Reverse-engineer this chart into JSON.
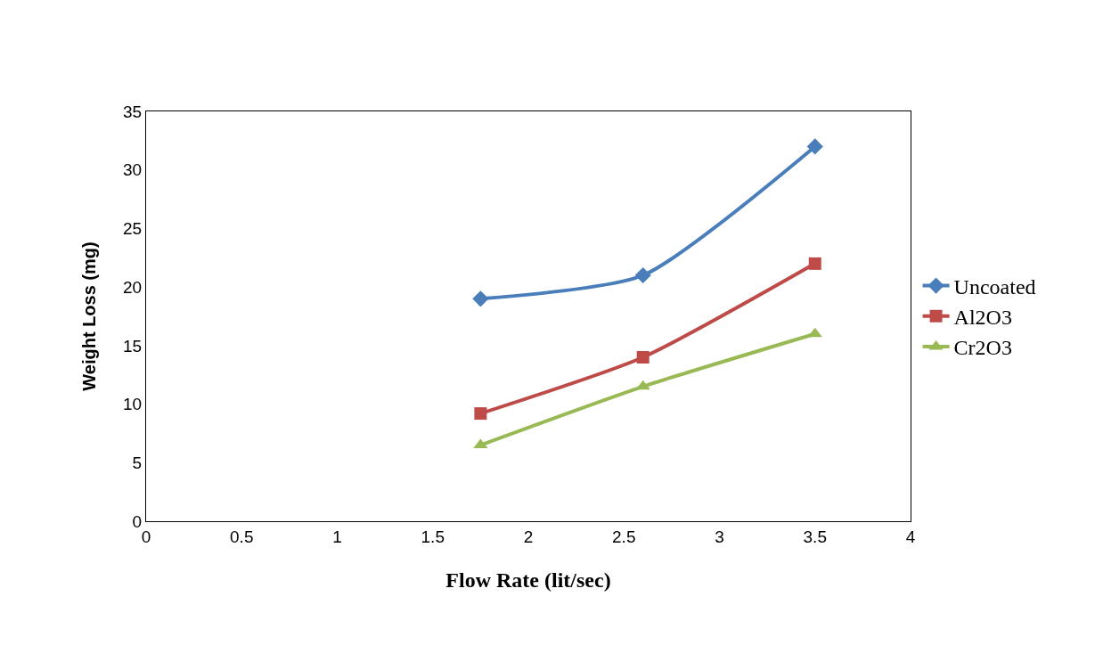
{
  "chart_data": {
    "type": "line",
    "xlabel": "Flow Rate (lit/sec)",
    "ylabel": "Weight Loss (mg)",
    "x": [
      1.75,
      2.6,
      3.5
    ],
    "series": [
      {
        "name": "Uncoated",
        "color": "#4a7ebb",
        "marker": "diamond",
        "values": [
          19,
          21,
          32
        ]
      },
      {
        "name": "Al2O3",
        "color": "#be4b48",
        "marker": "square",
        "values": [
          9.2,
          14,
          22
        ]
      },
      {
        "name": "Cr2O3",
        "color": "#98b954",
        "marker": "triangle",
        "values": [
          6.5,
          11.5,
          16
        ]
      }
    ],
    "xlim": [
      0,
      4
    ],
    "xticks": [
      0,
      0.5,
      1,
      1.5,
      2,
      2.5,
      3,
      3.5,
      4
    ],
    "ylim": [
      0,
      35
    ],
    "yticks": [
      0,
      5,
      10,
      15,
      20,
      25,
      30,
      35
    ],
    "grid": false,
    "legend": "right",
    "line_style": "solid"
  }
}
